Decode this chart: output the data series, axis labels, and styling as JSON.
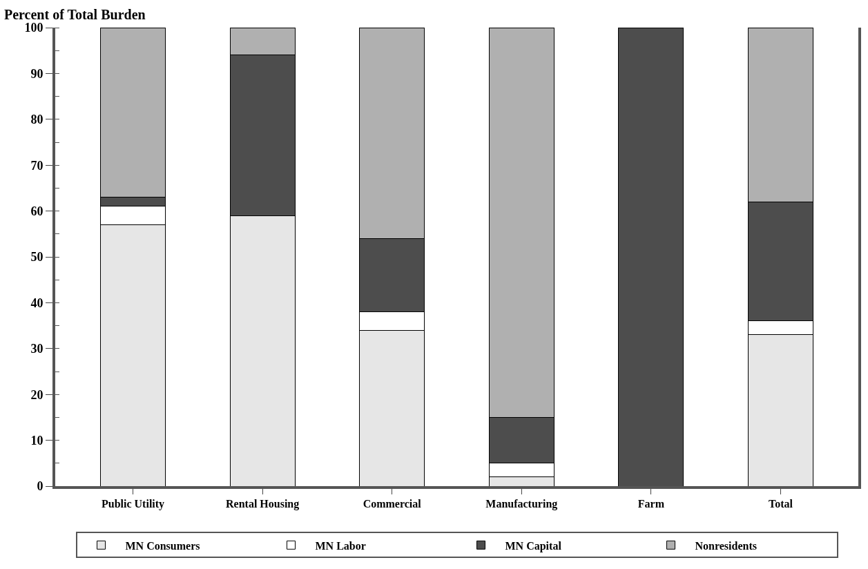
{
  "chart_data": {
    "type": "bar",
    "stacked": true,
    "ylabel": "Percent of Total Burden",
    "categories": [
      "Public Utility",
      "Rental Housing",
      "Commercial",
      "Manufacturing",
      "Farm",
      "Total"
    ],
    "series": [
      {
        "name": "MN Consumers",
        "color": "#e6e6e6",
        "values": [
          57,
          59,
          34,
          2,
          0,
          33
        ]
      },
      {
        "name": "MN Labor",
        "color": "#ffffff",
        "values": [
          4,
          0,
          4,
          3,
          0,
          3
        ]
      },
      {
        "name": "MN Capital",
        "color": "#4d4d4d",
        "values": [
          2,
          35,
          16,
          10,
          100,
          26
        ]
      },
      {
        "name": "Nonresidents",
        "color": "#b0b0b0",
        "values": [
          37,
          6,
          46,
          85,
          0,
          38
        ]
      }
    ],
    "ylim": [
      0,
      100
    ],
    "yticks": [
      0,
      10,
      20,
      30,
      40,
      50,
      60,
      70,
      80,
      90,
      100
    ],
    "legend": "bottom"
  }
}
